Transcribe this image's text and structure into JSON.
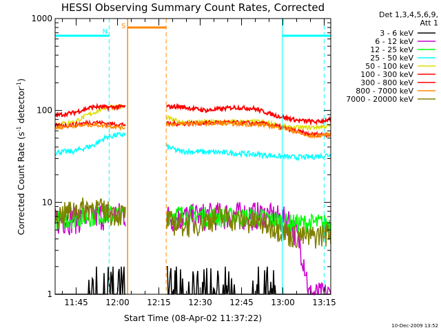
{
  "chart_data": {
    "type": "line",
    "title": "HESSI Observing Summary Count Rates, Corrected",
    "xlabel": "Start Time (08-Apr-02 11:37:22)",
    "ylabel": "Corrected Count Rate (s",
    "ylabel_sup1": "-1",
    "ylabel_mid": " detector",
    "ylabel_sup2": "-1",
    "ylabel_end": ")",
    "y_scale": "log",
    "ylim": [
      1,
      1000
    ],
    "xlim_minutes_since_start": [
      0,
      100
    ],
    "x_ticks": [
      {
        "label": "11:45",
        "t": 7.63
      },
      {
        "label": "12:00",
        "t": 22.63
      },
      {
        "label": "12:15",
        "t": 37.63
      },
      {
        "label": "12:30",
        "t": 52.63
      },
      {
        "label": "12:45",
        "t": 67.63
      },
      {
        "label": "13:00",
        "t": 82.63
      },
      {
        "label": "13:15",
        "t": 97.63
      }
    ],
    "y_ticks": [
      {
        "label": "1",
        "v": 1
      },
      {
        "label": "10",
        "v": 10
      },
      {
        "label": "100",
        "v": 100
      },
      {
        "label": "1000",
        "v": 1000
      }
    ],
    "legend": {
      "header_line1": "Det 1,3,4,5,6,9,",
      "header_line2": "Att 1",
      "placement": "right"
    },
    "series": [
      {
        "name": "3 - 6 keV",
        "color": "#000000",
        "x": [
          0,
          15,
          25,
          45,
          60,
          75,
          90,
          100
        ],
        "y": [
          1,
          1,
          1,
          1,
          1.4,
          1.2,
          1,
          1
        ]
      },
      {
        "name": "6 - 12 keV",
        "color": "#cc00cc",
        "x": [
          0,
          10,
          19,
          25,
          45,
          60,
          75,
          85,
          92,
          100
        ],
        "y": [
          6.5,
          7,
          7.5,
          7.5,
          7,
          7.5,
          7.5,
          6.5,
          1,
          1
        ]
      },
      {
        "name": "12 - 25 keV",
        "color": "#00ff00",
        "x": [
          0,
          10,
          19,
          25,
          45,
          60,
          75,
          85,
          92,
          100
        ],
        "y": [
          6.5,
          7,
          7.5,
          7.5,
          7.5,
          7,
          7,
          6,
          6,
          6
        ]
      },
      {
        "name": "25 - 50 keV",
        "color": "#00ffff",
        "x": [
          0,
          7,
          14,
          19,
          25,
          45,
          60,
          75,
          85,
          92,
          100
        ],
        "y": [
          35,
          36,
          42,
          52,
          55,
          36,
          35,
          33,
          31,
          31,
          33
        ]
      },
      {
        "name": "50 - 100 keV",
        "color": "#dddd00",
        "x": [
          0,
          7,
          14,
          19,
          25,
          45,
          60,
          75,
          85,
          92,
          100
        ],
        "y": [
          70,
          75,
          95,
          110,
          110,
          75,
          75,
          75,
          65,
          65,
          68
        ]
      },
      {
        "name": "100 - 300 keV",
        "color": "#ff0000",
        "x": [
          0,
          7,
          14,
          19,
          25,
          45,
          55,
          65,
          72,
          80,
          88,
          95,
          100
        ],
        "y": [
          88,
          95,
          110,
          108,
          110,
          110,
          100,
          108,
          105,
          88,
          78,
          75,
          80
        ]
      },
      {
        "name": "300 - 800 keV",
        "color": "#ff0000",
        "x": [
          0,
          7,
          14,
          19,
          25,
          45,
          60,
          75,
          80,
          85,
          92,
          100
        ],
        "y": [
          68,
          70,
          75,
          72,
          70,
          72,
          74,
          72,
          68,
          62,
          55,
          55
        ]
      },
      {
        "name": "800 - 7000 keV",
        "color": "#ff8800",
        "x": [
          0,
          7,
          14,
          19,
          25,
          45,
          60,
          75,
          85,
          92,
          100
        ],
        "y": [
          65,
          68,
          70,
          68,
          65,
          72,
          72,
          70,
          62,
          52,
          55
        ]
      },
      {
        "name": "7000 - 20000 keV",
        "color": "#808000",
        "x": [
          0,
          7,
          14,
          19,
          25,
          45,
          50,
          60,
          70,
          75,
          80,
          85,
          92,
          100
        ],
        "y": [
          7,
          8.5,
          9,
          8,
          7.5,
          6,
          5.8,
          7.2,
          6.2,
          6,
          5.5,
          4.5,
          4.2,
          4.8
        ]
      }
    ],
    "events": [
      {
        "type": "night",
        "label": "N",
        "color": "#00ffff",
        "start": 19.6,
        "end": 82.4
      },
      {
        "type": "saa",
        "label": "S",
        "color": "#ff8800",
        "start": 26.3,
        "end": 40.3
      }
    ],
    "data_gaps": [
      [
        25.5,
        40.3
      ]
    ]
  },
  "footer": {
    "stamp": "10-Dec-2009 13:52"
  }
}
